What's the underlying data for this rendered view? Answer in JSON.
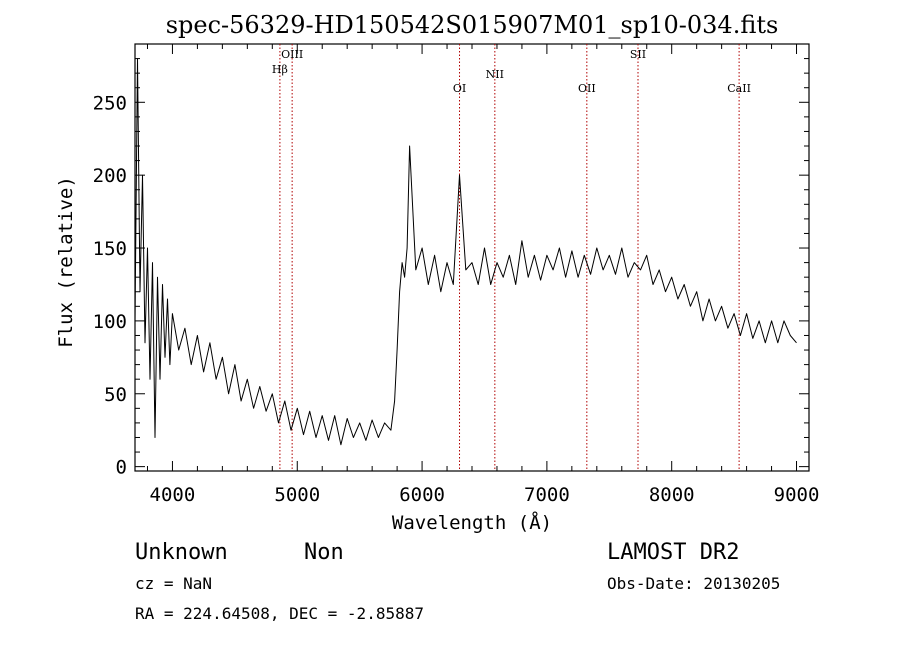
{
  "chart_data": {
    "type": "line",
    "title": "spec-56329-HD150542S015907M01_sp10-034.fits",
    "xlabel": "Wavelength (Å)",
    "ylabel": "Flux (relative)",
    "xlim": [
      3700,
      9100
    ],
    "ylim": [
      -3,
      290
    ],
    "x_ticks": [
      4000,
      5000,
      6000,
      7000,
      8000,
      9000
    ],
    "y_ticks": [
      0,
      50,
      100,
      150,
      200,
      250
    ],
    "x_tick_labels": [
      "4000",
      "5000",
      "6000",
      "7000",
      "8000",
      "9000"
    ],
    "y_tick_labels": [
      "0",
      "50",
      "100",
      "150",
      "200",
      "250"
    ],
    "series": [
      {
        "x": [
          3700,
          3720,
          3740,
          3760,
          3780,
          3800,
          3820,
          3840,
          3860,
          3880,
          3900,
          3920,
          3940,
          3960,
          3980,
          4000,
          4050,
          4100,
          4150,
          4200,
          4250,
          4300,
          4350,
          4400,
          4450,
          4500,
          4550,
          4600,
          4650,
          4700,
          4750,
          4800,
          4850,
          4900,
          4950,
          5000,
          5050,
          5100,
          5150,
          5200,
          5250,
          5300,
          5350,
          5400,
          5450,
          5500,
          5550,
          5600,
          5650,
          5700,
          5750,
          5780,
          5800,
          5820,
          5840,
          5860,
          5880,
          5900,
          5950,
          6000,
          6050,
          6100,
          6150,
          6200,
          6250,
          6300,
          6350,
          6400,
          6450,
          6500,
          6550,
          6600,
          6650,
          6700,
          6750,
          6800,
          6850,
          6900,
          6950,
          7000,
          7050,
          7100,
          7150,
          7200,
          7250,
          7300,
          7350,
          7400,
          7450,
          7500,
          7550,
          7600,
          7650,
          7700,
          7750,
          7800,
          7850,
          7900,
          7950,
          8000,
          8050,
          8100,
          8150,
          8200,
          8250,
          8300,
          8350,
          8400,
          8450,
          8500,
          8550,
          8600,
          8650,
          8700,
          8750,
          8800,
          8850,
          8900,
          8950,
          9000
        ],
        "y": [
          100,
          280,
          120,
          200,
          85,
          150,
          60,
          140,
          20,
          130,
          60,
          125,
          75,
          115,
          70,
          105,
          80,
          95,
          70,
          90,
          65,
          85,
          60,
          75,
          50,
          70,
          45,
          60,
          40,
          55,
          38,
          50,
          30,
          45,
          25,
          40,
          22,
          38,
          20,
          35,
          18,
          35,
          15,
          33,
          20,
          30,
          18,
          32,
          20,
          30,
          25,
          45,
          80,
          120,
          140,
          130,
          150,
          220,
          135,
          150,
          125,
          145,
          120,
          140,
          125,
          200,
          135,
          140,
          125,
          150,
          125,
          140,
          130,
          145,
          125,
          155,
          130,
          145,
          128,
          145,
          135,
          150,
          130,
          148,
          130,
          145,
          132,
          150,
          135,
          145,
          132,
          150,
          130,
          140,
          135,
          145,
          125,
          135,
          120,
          130,
          115,
          125,
          110,
          120,
          100,
          115,
          100,
          110,
          95,
          105,
          90,
          105,
          88,
          100,
          85,
          100,
          85,
          100,
          90,
          85
        ]
      }
    ],
    "lines": [
      {
        "label": "Hβ",
        "x": 4861
      },
      {
        "label": "OIII",
        "x": 4959
      },
      {
        "label": "OI",
        "x": 6300
      },
      {
        "label": "NII",
        "x": 6583
      },
      {
        "label": "OII",
        "x": 7320
      },
      {
        "label": "SII",
        "x": 7730
      },
      {
        "label": "CaII",
        "x": 8540
      }
    ],
    "grid": false
  },
  "info": {
    "type": "Unknown",
    "subtype": "Non",
    "survey": "LAMOST DR2",
    "cz": "cz = NaN",
    "obs_date": "Obs-Date: 20130205",
    "coords": "RA = 224.64508, DEC =  -2.85887"
  },
  "colors": {
    "line_marker": "#b00000",
    "spectrum": "#000000"
  }
}
